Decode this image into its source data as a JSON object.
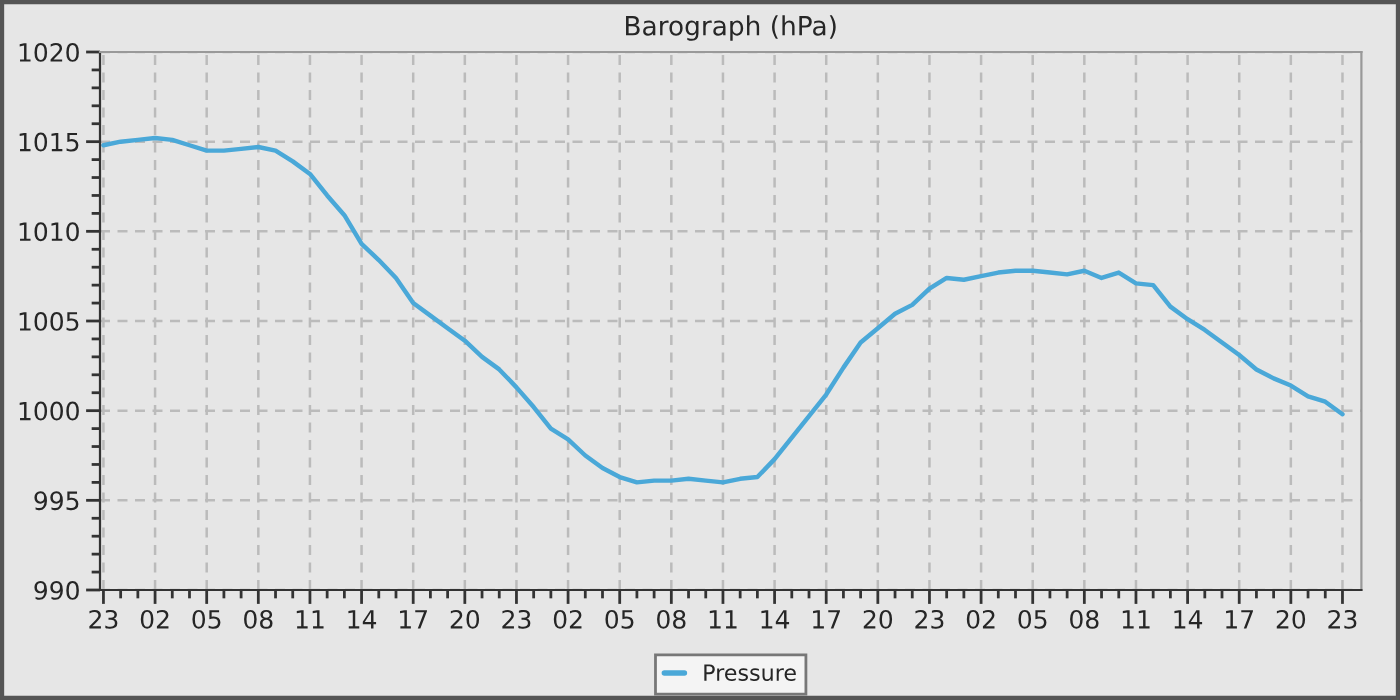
{
  "chart_data": {
    "type": "line",
    "title": "Barograph (hPa)",
    "categories": [
      "23",
      null,
      null,
      "02",
      null,
      null,
      "05",
      null,
      null,
      "08",
      null,
      null,
      "11",
      null,
      null,
      "14",
      null,
      null,
      "17",
      null,
      null,
      "20",
      null,
      null,
      "23",
      null,
      null,
      "02",
      null,
      null,
      "05",
      null,
      null,
      "08",
      null,
      null,
      "11",
      null,
      null,
      "14",
      null,
      null,
      "17",
      null,
      null,
      "20",
      null,
      null,
      "23",
      null,
      null,
      "02",
      null,
      null,
      "05",
      null,
      null,
      "08",
      null,
      null,
      "11",
      null,
      null,
      "14",
      null,
      null,
      "17",
      null,
      null,
      "20",
      null,
      null,
      "23"
    ],
    "series": [
      {
        "name": "Pressure",
        "color": "#4aa8d8",
        "values": [
          1014.8,
          1015.0,
          1015.1,
          1015.2,
          1015.1,
          1014.8,
          1014.5,
          1014.5,
          1014.6,
          1014.7,
          1014.5,
          1013.9,
          1013.2,
          1012.0,
          1010.9,
          1009.3,
          1008.4,
          1007.4,
          1006.0,
          1005.3,
          1004.6,
          1003.9,
          1003.0,
          1002.3,
          1001.3,
          1000.2,
          999.0,
          998.4,
          997.5,
          996.8,
          996.3,
          996.0,
          996.1,
          996.1,
          996.2,
          996.1,
          996.0,
          996.2,
          996.3,
          997.3,
          998.5,
          999.7,
          1000.9,
          1002.4,
          1003.8,
          1004.6,
          1005.4,
          1005.9,
          1006.8,
          1007.4,
          1007.3,
          1007.5,
          1007.7,
          1007.8,
          1007.8,
          1007.7,
          1007.6,
          1007.8,
          1007.4,
          1007.7,
          1007.1,
          1007.0,
          1005.8,
          1005.1,
          1004.5,
          1003.8,
          1003.1,
          1002.3,
          1001.8,
          1001.4,
          1000.8,
          1000.5,
          999.8
        ]
      }
    ],
    "ylim": [
      990,
      1020
    ],
    "yticks": [
      990,
      {
        "value": 991,
        "label": null
      },
      {
        "value": 992,
        "label": null
      },
      {
        "value": 993,
        "label": null
      },
      {
        "value": 994,
        "label": null
      },
      995,
      {
        "value": 996,
        "label": null
      },
      {
        "value": 997,
        "label": null
      },
      {
        "value": 998,
        "label": null
      },
      {
        "value": 999,
        "label": null
      },
      1000,
      {
        "value": 1001,
        "label": null
      },
      {
        "value": 1002,
        "label": null
      },
      {
        "value": 1003,
        "label": null
      },
      {
        "value": 1004,
        "label": null
      },
      1005,
      {
        "value": 1006,
        "label": null
      },
      {
        "value": 1007,
        "label": null
      },
      {
        "value": 1008,
        "label": null
      },
      {
        "value": 1009,
        "label": null
      },
      1010,
      {
        "value": 1011,
        "label": null
      },
      {
        "value": 1012,
        "label": null
      },
      {
        "value": 1013,
        "label": null
      },
      {
        "value": 1014,
        "label": null
      },
      1015,
      {
        "value": 1016,
        "label": null
      },
      {
        "value": 1017,
        "label": null
      },
      {
        "value": 1018,
        "label": null
      },
      {
        "value": 1019,
        "label": null
      },
      1020
    ],
    "grid": true,
    "legend": "bottom",
    "line_style": "solid"
  }
}
